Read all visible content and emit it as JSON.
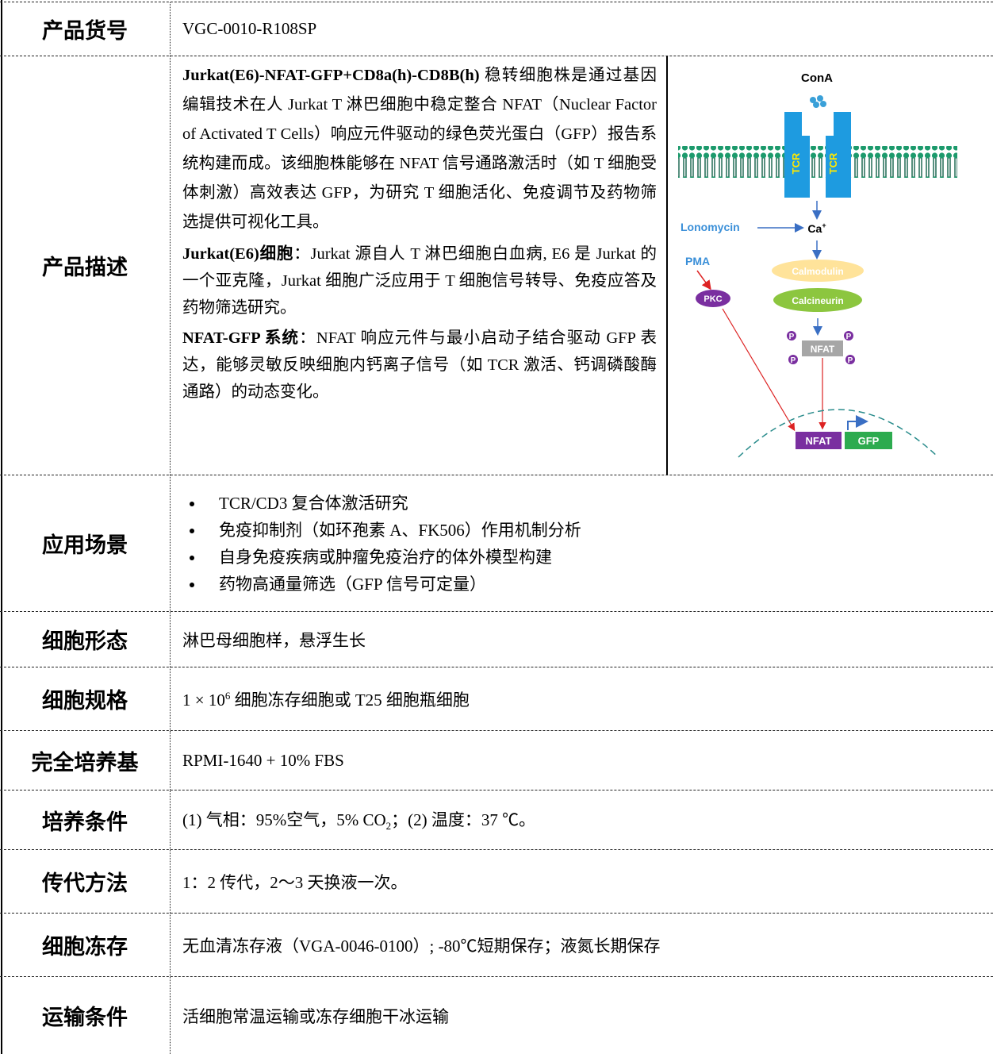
{
  "table": {
    "rows": [
      {
        "label": "产品货号",
        "content": "VGC-0010-R108SP"
      },
      {
        "label": "产品描述",
        "paragraphs": [
          {
            "bold": "Jurkat(E6)-NFAT-GFP+CD8a(h)-CD8B(h)",
            "text": " 稳转细胞株是通过基因编辑技术在人 Jurkat T 淋巴细胞中稳定整合 NFAT（Nuclear Factor of Activated T Cells）响应元件驱动的绿色荧光蛋白（GFP）报告系统构建而成。该细胞株能够在 NFAT 信号通路激活时（如 T 细胞受体刺激）高效表达 GFP，为研究 T 细胞活化、免疫调节及药物筛选提供可视化工具。"
          },
          {
            "bold": "Jurkat(E6)细胞",
            "text": "：Jurkat 源自人 T 淋巴细胞白血病, E6 是 Jurkat 的一个亚克隆，Jurkat 细胞广泛应用于 T 细胞信号转导、免疫应答及药物筛选研究。"
          },
          {
            "bold": "NFAT-GFP 系统",
            "text": "：NFAT 响应元件与最小启动子结合驱动 GFP 表达，能够灵敏反映细胞内钙离子信号（如 TCR 激活、钙调磷酸酶通路）的动态变化。"
          }
        ],
        "diagram": {
          "cona": "ConA",
          "tcr": [
            "TCR",
            "TCR"
          ],
          "lonomycin": "Lonomycin",
          "ca": [
            "Ca",
            "+"
          ],
          "pma": "PMA",
          "calmodulin": "Calmodulin",
          "calcineurin": "Calcineurin",
          "pkc": "PKC",
          "nfat": "NFAT",
          "phospho": [
            "P",
            "P",
            "P",
            "P"
          ],
          "nfat_nucleus": "NFAT",
          "gfp": "GFP"
        }
      },
      {
        "label": "应用场景",
        "bullets": [
          "TCR/CD3 复合体激活研究",
          "免疫抑制剂（如环孢素 A、FK506）作用机制分析",
          "自身免疫疾病或肿瘤免疫治疗的体外模型构建",
          "药物高通量筛选（GFP 信号可定量）"
        ]
      },
      {
        "label": "细胞形态",
        "content": "淋巴母细胞样，悬浮生长"
      },
      {
        "label": "细胞规格",
        "content_parts": [
          "1 × 10",
          "6",
          " 细胞冻存细胞或 T25 细胞瓶细胞"
        ]
      },
      {
        "label": "完全培养基",
        "content": "RPMI-1640 + 10% FBS"
      },
      {
        "label": "培养条件",
        "content_parts": [
          "(1) 气相：95%空气，5% CO",
          "2",
          "；(2) 温度：37 ℃。"
        ]
      },
      {
        "label": "传代方法",
        "content": "1：2 传代，2～3 天换液一次。"
      },
      {
        "label": "细胞冻存",
        "content": "无血清冻存液（VGA-0046-0100）; -80℃短期保存；液氮长期保存"
      },
      {
        "label": "运输条件",
        "content": "活细胞常温运输或冻存细胞干冰运输"
      }
    ]
  }
}
